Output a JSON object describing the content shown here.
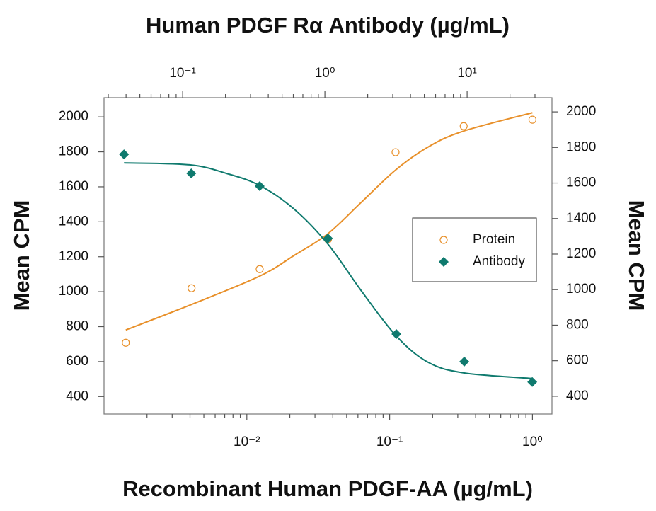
{
  "chart_data": {
    "type": "scatter",
    "title": "Human PDGF Rα Antibody (µg/mL)",
    "x_label": "Recombinant Human PDGF-AA (µg/mL)",
    "y_label": "Mean CPM",
    "y2_label": "Mean CPM",
    "xscale": "log",
    "x2scale": "log",
    "xlim": [
      0.001,
      1.37
    ],
    "xticks": [
      {
        "value": 0.01,
        "label": "10⁻²"
      },
      {
        "value": 0.1,
        "label": "10⁻¹"
      },
      {
        "value": 1,
        "label": "10⁰"
      }
    ],
    "xminorticks": [
      0.002,
      0.003,
      0.004,
      0.005,
      0.006,
      0.007,
      0.008,
      0.009,
      0.02,
      0.03,
      0.04,
      0.05,
      0.06,
      0.07,
      0.08,
      0.09,
      0.2,
      0.3,
      0.4,
      0.5,
      0.6,
      0.7,
      0.8,
      0.9
    ],
    "x2lim": [
      0.028,
      39.5
    ],
    "x2ticks": [
      {
        "value": 0.1,
        "label": "10⁻¹"
      },
      {
        "value": 1,
        "label": "10⁰"
      },
      {
        "value": 10,
        "label": "10¹"
      }
    ],
    "x2minorticks": [
      0.03,
      0.04,
      0.05,
      0.06,
      0.07,
      0.08,
      0.09,
      0.2,
      0.3,
      0.4,
      0.5,
      0.6,
      0.7,
      0.8,
      0.9,
      2,
      3,
      4,
      5,
      6,
      7,
      8,
      9,
      20,
      30
    ],
    "ylim": [
      300,
      2110
    ],
    "yticks": [
      400,
      600,
      800,
      1000,
      1200,
      1400,
      1600,
      1800,
      2000
    ],
    "y2lim": [
      300,
      2080
    ],
    "y2ticks": [
      400,
      600,
      800,
      1000,
      1200,
      1400,
      1600,
      1800,
      2000
    ],
    "legend": "right",
    "series": [
      {
        "name": "Protein",
        "color": "#e8902a",
        "marker": "circle",
        "x": [
          0.00142,
          0.0041,
          0.0123,
          0.037,
          0.11,
          0.33,
          1.0
        ],
        "values": [
          708,
          1020,
          1129,
          1299,
          1798,
          1947,
          1984
        ],
        "fit_x": [
          0.00142,
          0.0041,
          0.0123,
          0.0217,
          0.037,
          0.0638,
          0.11,
          0.188,
          0.33,
          1.0
        ],
        "fit_values": [
          781,
          927,
          1089,
          1210,
          1332,
          1514,
          1696,
          1830,
          1919,
          2024
        ]
      },
      {
        "name": "Antibody",
        "color": "#0f7a6e",
        "marker": "diamond",
        "axis": "y2",
        "x_axis": "x2",
        "x": [
          0.0387,
          0.115,
          0.348,
          1.05,
          3.18,
          9.55,
          28.7
        ],
        "values": [
          1761,
          1654,
          1582,
          1288,
          750,
          595,
          480
        ],
        "fit_x": [
          0.0387,
          0.112,
          0.203,
          0.348,
          0.604,
          1.05,
          1.79,
          3.18,
          5.32,
          9.55,
          28.7
        ],
        "fit_values": [
          1713,
          1702,
          1654,
          1586,
          1455,
          1256,
          997,
          739,
          591,
          531,
          500
        ]
      }
    ]
  }
}
